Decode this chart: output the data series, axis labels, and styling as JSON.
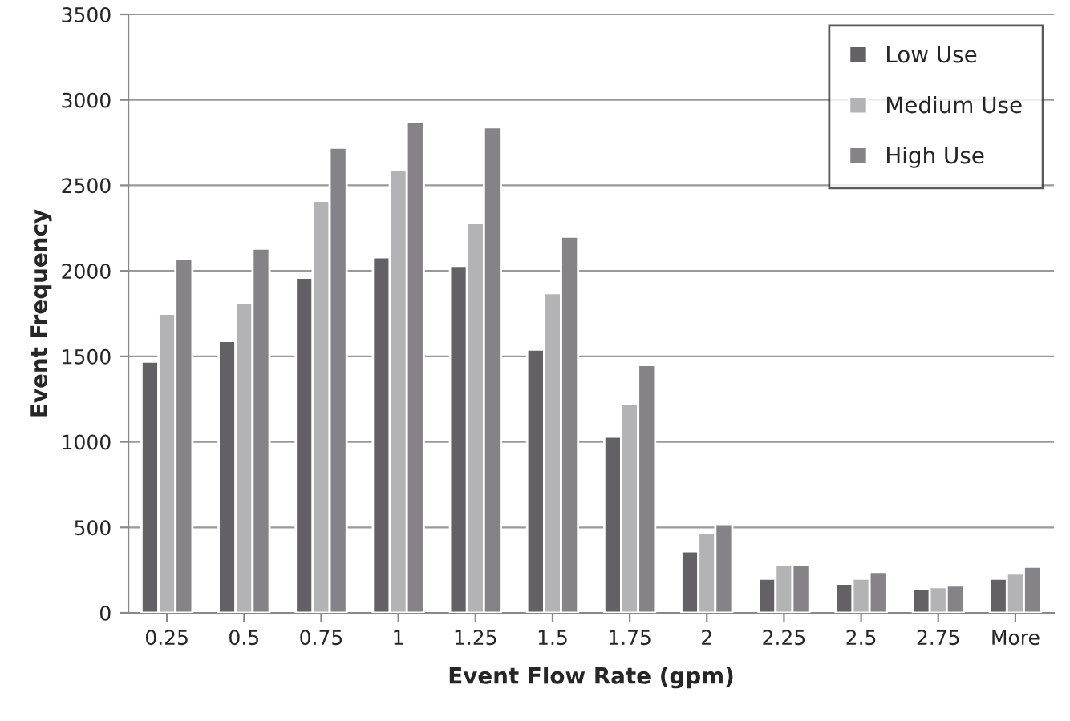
{
  "chart_data": {
    "type": "bar",
    "xlabel": "Event Flow Rate (gpm)",
    "ylabel": "Event Frequency",
    "categories": [
      "0.25",
      "0.5",
      "0.75",
      "1",
      "1.25",
      "1.5",
      "1.75",
      "2",
      "2.25",
      "2.5",
      "2.75",
      "More"
    ],
    "series": [
      {
        "name": "Low Use",
        "color": "#636165",
        "values": [
          1470,
          1590,
          1960,
          2080,
          2030,
          1540,
          1030,
          360,
          200,
          170,
          140,
          200
        ]
      },
      {
        "name": "Medium Use",
        "color": "#b3b2b4",
        "values": [
          1750,
          1810,
          2410,
          2590,
          2280,
          1870,
          1220,
          470,
          280,
          200,
          150,
          230
        ]
      },
      {
        "name": "High Use",
        "color": "#858388",
        "values": [
          2070,
          2130,
          2720,
          2870,
          2840,
          2200,
          1450,
          520,
          280,
          240,
          160,
          270
        ]
      }
    ],
    "ylim": [
      0,
      3500
    ],
    "yticks": [
      0,
      500,
      1000,
      1500,
      2000,
      2500,
      3000,
      3500
    ],
    "grid": "y",
    "legend": "top right"
  }
}
